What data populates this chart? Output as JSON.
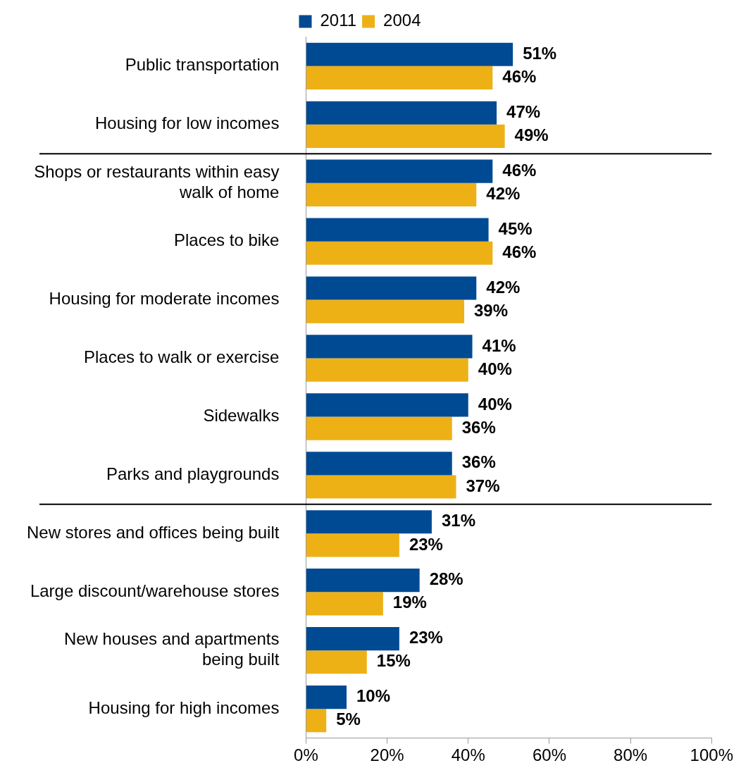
{
  "chart_data": {
    "type": "bar",
    "orientation": "horizontal",
    "categories": [
      "Public transportation",
      "Housing for low incomes",
      "Shops or restaurants within easy walk of home",
      "Places to bike",
      "Housing for moderate incomes",
      "Places to walk or exercise",
      "Sidewalks",
      "Parks and playgrounds",
      "New stores and offices being built",
      "Large discount/warehouse stores",
      "New houses and apartments being built",
      "Housing for high incomes"
    ],
    "series": [
      {
        "name": "2011",
        "color": "#004a93",
        "values": [
          51,
          47,
          46,
          45,
          42,
          41,
          40,
          36,
          31,
          28,
          23,
          10
        ],
        "value_labels": [
          "51%",
          "47%",
          "46%",
          "45%",
          "42%",
          "41%",
          "40%",
          "36%",
          "31%",
          "28%",
          "23%",
          "10%"
        ]
      },
      {
        "name": "2004",
        "color": "#edb116",
        "values": [
          46,
          49,
          42,
          46,
          39,
          40,
          36,
          37,
          23,
          19,
          15,
          5
        ],
        "value_labels": [
          "46%",
          "49%",
          "42%",
          "46%",
          "39%",
          "40%",
          "36%",
          "37%",
          "23%",
          "19%",
          "15%",
          "5%"
        ]
      }
    ],
    "xlim": [
      0,
      100
    ],
    "xticks": [
      {
        "value": 0,
        "label": "0%"
      },
      {
        "value": 20,
        "label": "20%"
      },
      {
        "value": 40,
        "label": "40%"
      },
      {
        "value": 60,
        "label": "60%"
      },
      {
        "value": 80,
        "label": "80%"
      },
      {
        "value": 100,
        "label": "100%"
      }
    ],
    "legend": "top",
    "grid": false
  }
}
